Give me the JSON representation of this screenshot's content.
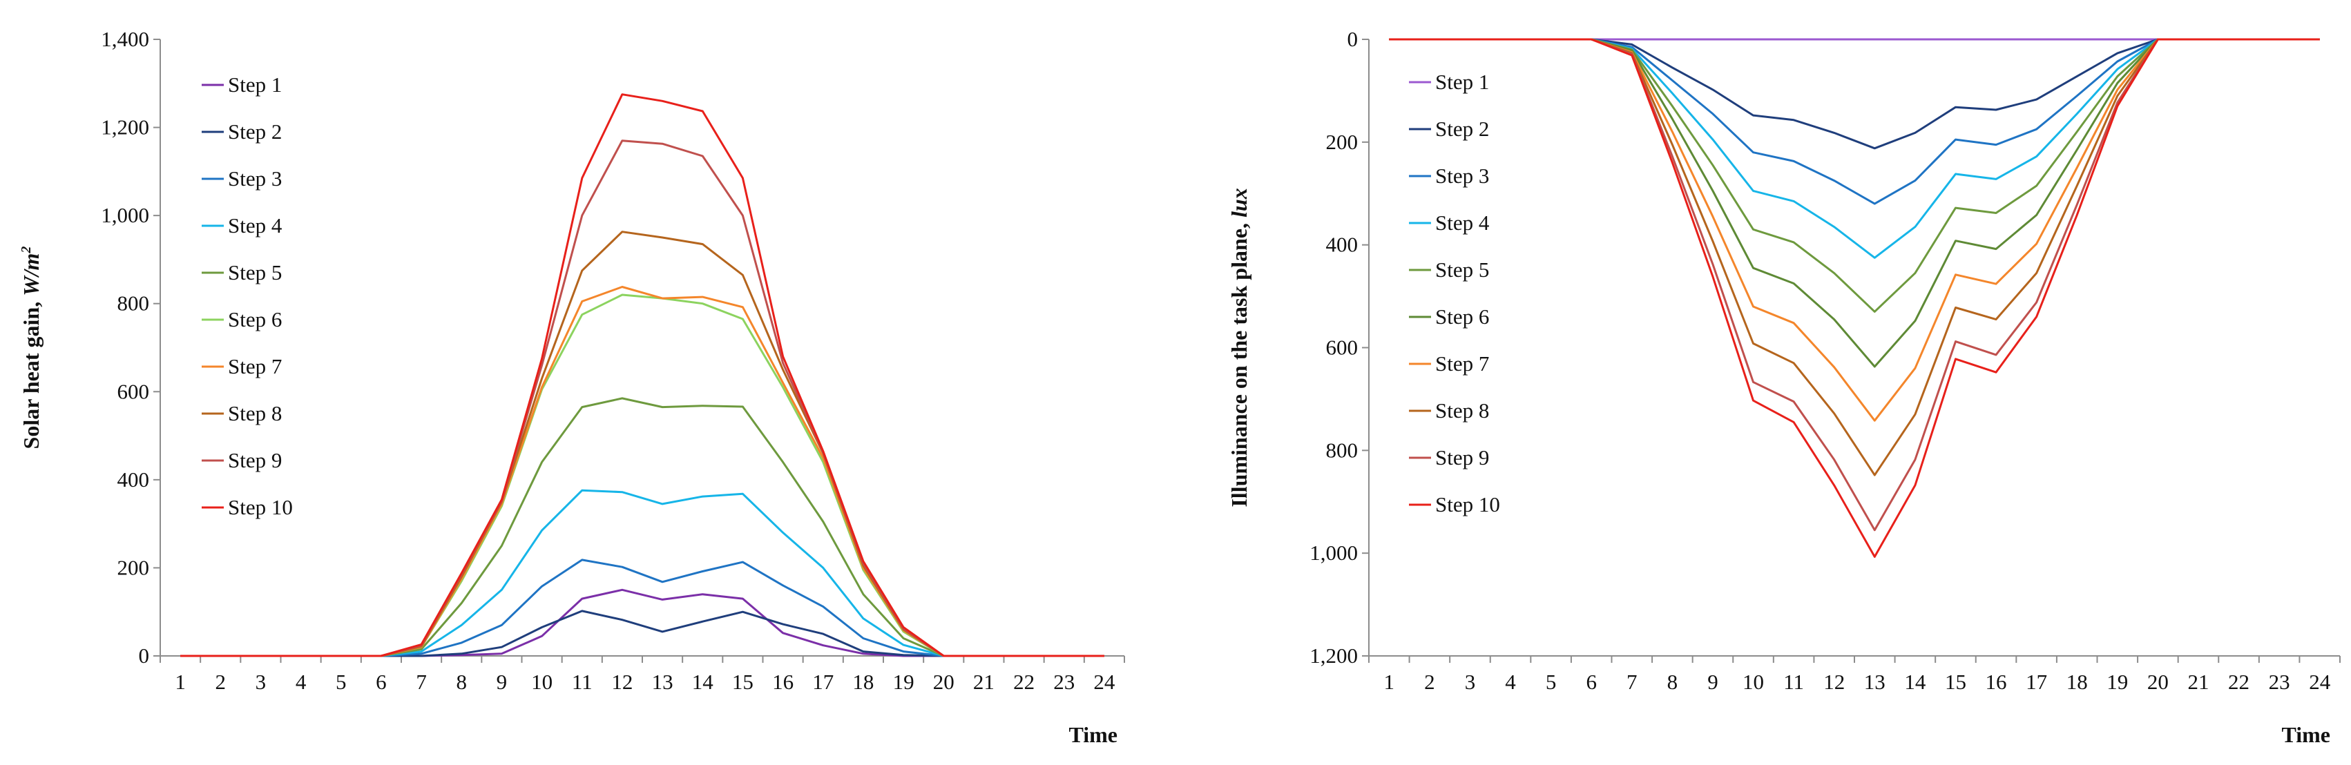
{
  "chart_data": [
    {
      "type": "line",
      "id": "left",
      "title": "",
      "ylabel_main": "Solar heat gain, ",
      "ylabel_unit": "W/m",
      "ylabel_sup": "2",
      "xlabel": "Time",
      "x": [
        1,
        2,
        3,
        4,
        5,
        6,
        7,
        8,
        9,
        10,
        11,
        12,
        13,
        14,
        15,
        16,
        17,
        18,
        19,
        20,
        21,
        22,
        23,
        24
      ],
      "x_tick_labels": [
        "1",
        "2",
        "3",
        "4",
        "5",
        "6",
        "7",
        "8",
        "9",
        "10",
        "11",
        "12",
        "13",
        "14",
        "15",
        "16",
        "17",
        "18",
        "19",
        "20",
        "21",
        "22",
        "23",
        "24"
      ],
      "ylim": [
        0,
        1400
      ],
      "y_inverted": false,
      "y_ticks": [
        0,
        200,
        400,
        600,
        800,
        1000,
        1200,
        1400
      ],
      "y_tick_labels": [
        "0",
        "200",
        "400",
        "600",
        "800",
        "1,000",
        "1,200",
        "1,400"
      ],
      "grid": false,
      "legend_position": "top-left",
      "series": [
        {
          "name": "Step 1",
          "color": "#7B2FA8",
          "values": [
            0,
            0,
            0,
            0,
            0,
            0,
            0,
            2,
            5,
            45,
            130,
            150,
            128,
            140,
            130,
            52,
            24,
            5,
            0,
            0,
            0,
            0,
            0,
            0
          ]
        },
        {
          "name": "Step 2",
          "color": "#1F3E7C",
          "values": [
            0,
            0,
            0,
            0,
            0,
            0,
            0,
            5,
            20,
            65,
            102,
            82,
            55,
            78,
            100,
            72,
            50,
            10,
            2,
            0,
            0,
            0,
            0,
            0
          ]
        },
        {
          "name": "Step 3",
          "color": "#1F74C4",
          "values": [
            0,
            0,
            0,
            0,
            0,
            0,
            5,
            30,
            70,
            158,
            218,
            202,
            168,
            192,
            213,
            160,
            112,
            40,
            10,
            0,
            0,
            0,
            0,
            0
          ]
        },
        {
          "name": "Step 4",
          "color": "#16B5E8",
          "values": [
            0,
            0,
            0,
            0,
            0,
            0,
            10,
            70,
            150,
            285,
            376,
            372,
            345,
            362,
            368,
            280,
            200,
            85,
            25,
            0,
            0,
            0,
            0,
            0
          ]
        },
        {
          "name": "Step 5",
          "color": "#6E9A3E",
          "values": [
            0,
            0,
            0,
            0,
            0,
            0,
            15,
            120,
            250,
            440,
            565,
            585,
            565,
            568,
            566,
            440,
            305,
            140,
            40,
            0,
            0,
            0,
            0,
            0
          ]
        },
        {
          "name": "Step 6",
          "color": "#8CD35F",
          "values": [
            0,
            0,
            0,
            0,
            0,
            0,
            20,
            170,
            340,
            605,
            775,
            820,
            812,
            800,
            765,
            610,
            440,
            195,
            55,
            0,
            0,
            0,
            0,
            0
          ]
        },
        {
          "name": "Step 7",
          "color": "#F4862B",
          "values": [
            0,
            0,
            0,
            0,
            0,
            0,
            20,
            175,
            345,
            610,
            805,
            838,
            812,
            815,
            792,
            620,
            450,
            200,
            58,
            0,
            0,
            0,
            0,
            0
          ]
        },
        {
          "name": "Step 8",
          "color": "#B5651D",
          "values": [
            0,
            0,
            0,
            0,
            0,
            0,
            22,
            180,
            350,
            630,
            875,
            963,
            950,
            935,
            865,
            650,
            460,
            205,
            60,
            0,
            0,
            0,
            0,
            0
          ]
        },
        {
          "name": "Step 9",
          "color": "#C0504D",
          "values": [
            0,
            0,
            0,
            0,
            0,
            0,
            24,
            185,
            352,
            660,
            1000,
            1170,
            1163,
            1135,
            1000,
            665,
            462,
            210,
            62,
            0,
            0,
            0,
            0,
            0
          ]
        },
        {
          "name": "Step 10",
          "color": "#E8201A",
          "values": [
            0,
            0,
            0,
            0,
            0,
            0,
            26,
            188,
            355,
            675,
            1085,
            1275,
            1260,
            1237,
            1085,
            680,
            465,
            215,
            65,
            0,
            0,
            0,
            0,
            0
          ]
        }
      ]
    },
    {
      "type": "line",
      "id": "right",
      "title": "",
      "ylabel_main": "Illuminance on the task plane, ",
      "ylabel_unit": "lux",
      "ylabel_sup": "",
      "xlabel": "Time",
      "x": [
        1,
        2,
        3,
        4,
        5,
        6,
        7,
        8,
        9,
        10,
        11,
        12,
        13,
        14,
        15,
        16,
        17,
        18,
        19,
        20,
        21,
        22,
        23,
        24
      ],
      "x_tick_labels": [
        "1",
        "2",
        "3",
        "4",
        "5",
        "6",
        "7",
        "8",
        "9",
        "10",
        "11",
        "12",
        "13",
        "14",
        "15",
        "16",
        "17",
        "18",
        "19",
        "20",
        "21",
        "22",
        "23",
        "24"
      ],
      "ylim": [
        0,
        1200
      ],
      "y_inverted": true,
      "y_ticks": [
        0,
        200,
        400,
        600,
        800,
        1000,
        1200
      ],
      "y_tick_labels": [
        "0",
        "200",
        "400",
        "600",
        "800",
        "1,000",
        "1,200"
      ],
      "grid": false,
      "legend_position": "top-left",
      "series": [
        {
          "name": "Step 1",
          "color": "#9B59D0",
          "values": [
            0,
            0,
            0,
            0,
            0,
            0,
            0,
            0,
            0,
            0,
            0,
            0,
            0,
            0,
            0,
            0,
            0,
            0,
            0,
            0,
            0,
            0,
            0,
            0
          ]
        },
        {
          "name": "Step 2",
          "color": "#1F3E7C",
          "values": [
            0,
            0,
            0,
            0,
            0,
            0,
            10,
            55,
            98,
            148,
            157,
            182,
            212,
            182,
            132,
            137,
            117,
            72,
            27,
            0,
            0,
            0,
            0,
            0
          ]
        },
        {
          "name": "Step 3",
          "color": "#1F74C4",
          "values": [
            0,
            0,
            0,
            0,
            0,
            0,
            15,
            80,
            145,
            220,
            237,
            275,
            320,
            275,
            195,
            205,
            175,
            110,
            43,
            0,
            0,
            0,
            0,
            0
          ]
        },
        {
          "name": "Step 4",
          "color": "#16B5E8",
          "values": [
            0,
            0,
            0,
            0,
            0,
            0,
            18,
            105,
            195,
            295,
            315,
            365,
            425,
            365,
            262,
            272,
            228,
            145,
            58,
            0,
            0,
            0,
            0,
            0
          ]
        },
        {
          "name": "Step 5",
          "color": "#6E9A3E",
          "values": [
            0,
            0,
            0,
            0,
            0,
            0,
            20,
            130,
            245,
            370,
            395,
            455,
            530,
            455,
            328,
            338,
            285,
            180,
            72,
            0,
            0,
            0,
            0,
            0
          ]
        },
        {
          "name": "Step 6",
          "color": "#5E8A35",
          "values": [
            0,
            0,
            0,
            0,
            0,
            0,
            22,
            155,
            295,
            445,
            475,
            545,
            637,
            548,
            392,
            408,
            342,
            215,
            85,
            0,
            0,
            0,
            0,
            0
          ]
        },
        {
          "name": "Step 7",
          "color": "#F4862B",
          "values": [
            0,
            0,
            0,
            0,
            0,
            0,
            25,
            180,
            345,
            520,
            552,
            638,
            742,
            640,
            458,
            476,
            398,
            250,
            98,
            0,
            0,
            0,
            0,
            0
          ]
        },
        {
          "name": "Step 8",
          "color": "#B5651D",
          "values": [
            0,
            0,
            0,
            0,
            0,
            0,
            27,
            205,
            393,
            592,
            630,
            728,
            848,
            730,
            522,
            545,
            455,
            285,
            110,
            0,
            0,
            0,
            0,
            0
          ]
        },
        {
          "name": "Step 9",
          "color": "#C0504D",
          "values": [
            0,
            0,
            0,
            0,
            0,
            0,
            29,
            228,
            438,
            667,
            705,
            818,
            955,
            818,
            588,
            614,
            512,
            322,
            123,
            0,
            0,
            0,
            0,
            0
          ]
        },
        {
          "name": "Step 10",
          "color": "#E8201A",
          "values": [
            0,
            0,
            0,
            0,
            0,
            0,
            31,
            240,
            462,
            703,
            745,
            868,
            1007,
            868,
            622,
            648,
            540,
            342,
            130,
            0,
            0,
            0,
            0,
            0
          ]
        }
      ]
    }
  ]
}
